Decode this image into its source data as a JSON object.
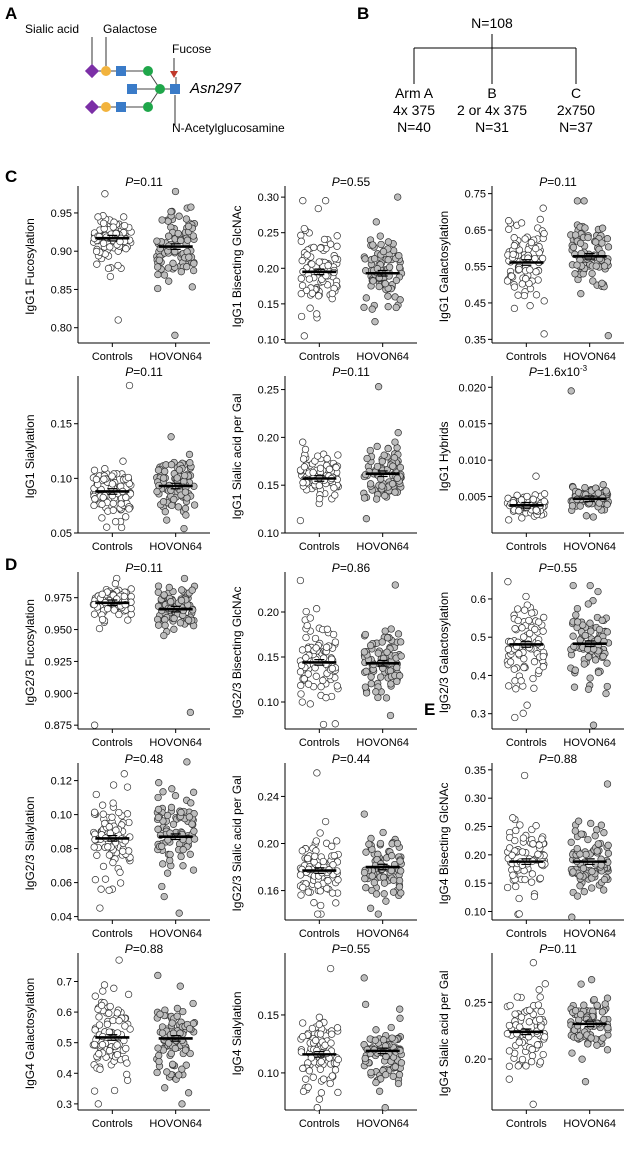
{
  "colors": {
    "control_fill": "#ffffff",
    "hovon_fill": "#bdbdbd",
    "mean_bar": "#000000",
    "sialic": "#7b2fa6",
    "galactose": "#f2b33d",
    "glcnac": "#3a7bc8",
    "mannose": "#1fa64a",
    "fucose": "#c0392b"
  },
  "panel_a": {
    "letter": "A",
    "labels": {
      "sialic": "Sialic acid",
      "galactose": "Galactose",
      "fucose": "Fucose",
      "asn": "Asn297",
      "glcnac": "N-Acetylglucosamine"
    },
    "icons": [
      "sialic-acid-diamond",
      "galactose-circle",
      "glcnac-square",
      "mannose-circle",
      "fucose-triangle"
    ]
  },
  "panel_b": {
    "letter": "B",
    "total": "N=108",
    "arms": [
      {
        "name": "Arm A",
        "dose": "4x 375",
        "n": "N=40"
      },
      {
        "name": "B",
        "dose": "2 or 4x 375",
        "n": "N=31"
      },
      {
        "name": "C",
        "dose": "2x750",
        "n": "N=37"
      }
    ]
  },
  "panel_c": {
    "letter": "C"
  },
  "panel_d": {
    "letter": "D"
  },
  "panel_e": {
    "letter": "E"
  },
  "groups": [
    "Controls",
    "HOVON64"
  ],
  "chart_data": [
    {
      "type": "scatter",
      "id": "igg1-fuc",
      "ylabel": "IgG1 Fucosylation",
      "p": "=0.11",
      "ylim": [
        0.78,
        0.98
      ],
      "ticks": [
        "0.80",
        "0.85",
        "0.90",
        "0.95"
      ],
      "control": {
        "mean": 0.917,
        "min": 0.81,
        "max": 0.975
      },
      "hovon": {
        "mean": 0.906,
        "min": 0.79,
        "max": 0.978
      }
    },
    {
      "type": "scatter",
      "id": "igg1-bis",
      "ylabel": "IgG1 Bisecting GlcNAc",
      "p": "=0.55",
      "ylim": [
        0.095,
        0.31
      ],
      "ticks": [
        "0.10",
        "0.15",
        "0.20",
        "0.25",
        "0.30"
      ],
      "control": {
        "mean": 0.195,
        "min": 0.105,
        "max": 0.295
      },
      "hovon": {
        "mean": 0.193,
        "min": 0.125,
        "max": 0.3
      }
    },
    {
      "type": "scatter",
      "id": "igg1-gal",
      "ylabel": "IgG1 Galactosylation",
      "p": "=0.11",
      "ylim": [
        0.34,
        0.76
      ],
      "ticks": [
        "0.35",
        "0.45",
        "0.55",
        "0.65",
        "0.75"
      ],
      "control": {
        "mean": 0.561,
        "min": 0.365,
        "max": 0.71
      },
      "hovon": {
        "mean": 0.578,
        "min": 0.36,
        "max": 0.73
      }
    },
    {
      "type": "scatter",
      "id": "igg1-sia",
      "ylabel": "IgG1 Sialylation",
      "p": "=0.11",
      "ylim": [
        0.05,
        0.19
      ],
      "ticks": [
        "0.05",
        "0.10",
        "0.15"
      ],
      "control": {
        "mean": 0.088,
        "min": 0.055,
        "max": 0.185
      },
      "hovon": {
        "mean": 0.093,
        "min": 0.054,
        "max": 0.138
      }
    },
    {
      "type": "scatter",
      "id": "igg1-sia-gal",
      "ylabel": "IgG1 Sialic acid per Gal",
      "p": "=0.11",
      "ylim": [
        0.1,
        0.26
      ],
      "ticks": [
        "0.10",
        "0.15",
        "0.20",
        "0.25"
      ],
      "control": {
        "mean": 0.157,
        "min": 0.113,
        "max": 0.195
      },
      "hovon": {
        "mean": 0.162,
        "min": 0.115,
        "max": 0.253
      }
    },
    {
      "type": "scatter",
      "id": "igg1-hyb",
      "ylabel": "IgG1 Hybrids",
      "p": "=1.6x10",
      "p_sup": "-3",
      "ylim": [
        0.0,
        0.021
      ],
      "ticks": [
        "0.005",
        "0.010",
        "0.015",
        "0.020"
      ],
      "control": {
        "mean": 0.0038,
        "min": 0.0018,
        "max": 0.0078
      },
      "hovon": {
        "mean": 0.0047,
        "min": 0.0022,
        "max": 0.0195
      }
    },
    {
      "type": "scatter",
      "id": "igg23-fuc",
      "ylabel": "IgG2/3 Fucosylation",
      "p": "=0.11",
      "ylim": [
        0.872,
        0.992
      ],
      "ticks": [
        "0.875",
        "0.900",
        "0.925",
        "0.950",
        "0.975"
      ],
      "control": {
        "mean": 0.971,
        "min": 0.875,
        "max": 0.99
      },
      "hovon": {
        "mean": 0.966,
        "min": 0.885,
        "max": 0.99
      }
    },
    {
      "type": "scatter",
      "id": "igg23-bis",
      "ylabel": "IgG2/3 Bisecting GlcNAc",
      "p": "=0.86",
      "ylim": [
        0.07,
        0.24
      ],
      "ticks": [
        "0.10",
        "0.15",
        "0.20"
      ],
      "control": {
        "mean": 0.144,
        "min": 0.075,
        "max": 0.235
      },
      "hovon": {
        "mean": 0.143,
        "min": 0.085,
        "max": 0.23
      }
    },
    {
      "type": "scatter",
      "id": "igg23-gal",
      "ylabel": "IgG2/3 Galactosylation",
      "p": "=0.55",
      "ylim": [
        0.26,
        0.66
      ],
      "ticks": [
        "0.3",
        "0.4",
        "0.5",
        "0.6"
      ],
      "control": {
        "mean": 0.481,
        "min": 0.29,
        "max": 0.645
      },
      "hovon": {
        "mean": 0.483,
        "min": 0.27,
        "max": 0.635
      }
    },
    {
      "type": "scatter",
      "id": "igg23-sia",
      "ylabel": "IgG2/3 Sialylation",
      "p": "=0.48",
      "ylim": [
        0.038,
        0.128
      ],
      "ticks": [
        "0.04",
        "0.06",
        "0.08",
        "0.10",
        "0.12"
      ],
      "control": {
        "mean": 0.086,
        "min": 0.045,
        "max": 0.124
      },
      "hovon": {
        "mean": 0.087,
        "min": 0.042,
        "max": 0.131
      }
    },
    {
      "type": "scatter",
      "id": "igg23-sia-gal",
      "ylabel": "IgG2/3 Sialic acid per Gal",
      "p": "=0.44",
      "ylim": [
        0.135,
        0.265
      ],
      "ticks": [
        "0.16",
        "0.20",
        "0.24"
      ],
      "control": {
        "mean": 0.177,
        "min": 0.14,
        "max": 0.26
      },
      "hovon": {
        "mean": 0.18,
        "min": 0.14,
        "max": 0.225
      }
    },
    {
      "type": "scatter",
      "id": "igg4-bis",
      "ylabel": "IgG4 Bisecting GlcNAc",
      "p": "=0.88",
      "ylim": [
        0.085,
        0.355
      ],
      "ticks": [
        "0.10",
        "0.15",
        "0.20",
        "0.25",
        "0.30",
        "0.35"
      ],
      "control": {
        "mean": 0.188,
        "min": 0.095,
        "max": 0.34
      },
      "hovon": {
        "mean": 0.188,
        "min": 0.09,
        "max": 0.325
      }
    },
    {
      "type": "scatter",
      "id": "igg4-gal",
      "ylabel": "IgG4 Galactosylation",
      "p": "=0.88",
      "ylim": [
        0.28,
        0.78
      ],
      "ticks": [
        "0.3",
        "0.4",
        "0.5",
        "0.6",
        "0.7"
      ],
      "control": {
        "mean": 0.517,
        "min": 0.3,
        "max": 0.77
      },
      "hovon": {
        "mean": 0.514,
        "min": 0.3,
        "max": 0.72
      }
    },
    {
      "type": "scatter",
      "id": "igg4-sia",
      "ylabel": "IgG4 Sialylation",
      "p": "=0.55",
      "ylim": [
        0.068,
        0.2
      ],
      "ticks": [
        "0.10",
        "0.15"
      ],
      "control": {
        "mean": 0.116,
        "min": 0.07,
        "max": 0.19
      },
      "hovon": {
        "mean": 0.119,
        "min": 0.07,
        "max": 0.182
      }
    },
    {
      "type": "scatter",
      "id": "igg4-sia-gal",
      "ylabel": "IgG4 Sialic acid per Gal",
      "p": "=0.11",
      "ylim": [
        0.155,
        0.29
      ],
      "ticks": [
        "0.20",
        "0.25"
      ],
      "control": {
        "mean": 0.224,
        "min": 0.16,
        "max": 0.285
      },
      "hovon": {
        "mean": 0.231,
        "min": 0.18,
        "max": 0.27
      }
    }
  ]
}
